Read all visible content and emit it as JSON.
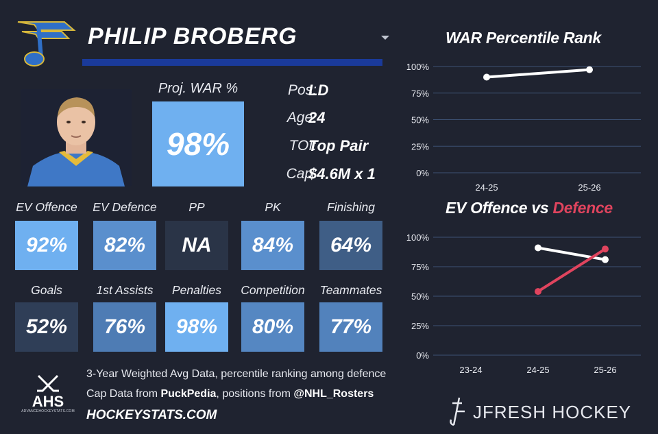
{
  "player": {
    "name": "PHILIP BROBERG"
  },
  "projection": {
    "label": "Proj. WAR %",
    "value": "98%",
    "color": "#6fb0f0"
  },
  "info": [
    {
      "label": "Pos:",
      "value": "LD"
    },
    {
      "label": "Age:",
      "value": "24"
    },
    {
      "label": "TOI:",
      "value": "Top Pair"
    },
    {
      "label": "Cap:",
      "value": "$4.6M x 1"
    }
  ],
  "tiles": [
    {
      "label": "EV Offence",
      "value": "92%",
      "color": "#6fb0f0"
    },
    {
      "label": "EV Defence",
      "value": "82%",
      "color": "#5a8fcd"
    },
    {
      "label": "PP",
      "value": "NA",
      "color": "#2a3447"
    },
    {
      "label": "PK",
      "value": "84%",
      "color": "#5a8fcd"
    },
    {
      "label": "Finishing",
      "value": "64%",
      "color": "#3f5e86"
    },
    {
      "label": "Goals",
      "value": "52%",
      "color": "#2f3e57"
    },
    {
      "label": "1st Assists",
      "value": "76%",
      "color": "#4e7cb4"
    },
    {
      "label": "Penalties",
      "value": "98%",
      "color": "#6fb0f0"
    },
    {
      "label": "Competition",
      "value": "80%",
      "color": "#5587c2"
    },
    {
      "label": "Teammates",
      "value": "77%",
      "color": "#5282bc"
    }
  ],
  "footer": {
    "line1": "3-Year Weighted Avg Data, percentile ranking among defence",
    "line2_prefix": "Cap Data from ",
    "line2_source1": "PuckPedia",
    "line2_mid": ", positions from ",
    "line2_source2": "@NHL_Rosters",
    "site": "HOCKEYSTATS.COM",
    "ahs_logo": "AHS",
    "ahs_url": "ADVANCEHOCKEYSTATS.COM",
    "brand": "JFRESH HOCKEY"
  },
  "chart_data": [
    {
      "type": "line",
      "title": "WAR Percentile Rank",
      "x": [
        "24-25",
        "25-26"
      ],
      "series": [
        {
          "name": "WAR",
          "values": [
            90,
            97
          ],
          "color": "#ffffff"
        }
      ],
      "ylim": [
        0,
        100
      ],
      "yticks": [
        "0%",
        "25%",
        "50%",
        "75%",
        "100%"
      ],
      "grid": true
    },
    {
      "type": "line",
      "title_prefix": "EV Offence vs ",
      "title_highlight": "Defence",
      "x": [
        "23-24",
        "24-25",
        "25-26"
      ],
      "series": [
        {
          "name": "EV Offence",
          "values": [
            null,
            91,
            81
          ],
          "color": "#ffffff"
        },
        {
          "name": "EV Defence",
          "values": [
            null,
            54,
            90
          ],
          "color": "#e0445e"
        }
      ],
      "ylim": [
        0,
        100
      ],
      "yticks": [
        "0%",
        "25%",
        "50%",
        "75%",
        "100%"
      ],
      "grid": true
    }
  ]
}
